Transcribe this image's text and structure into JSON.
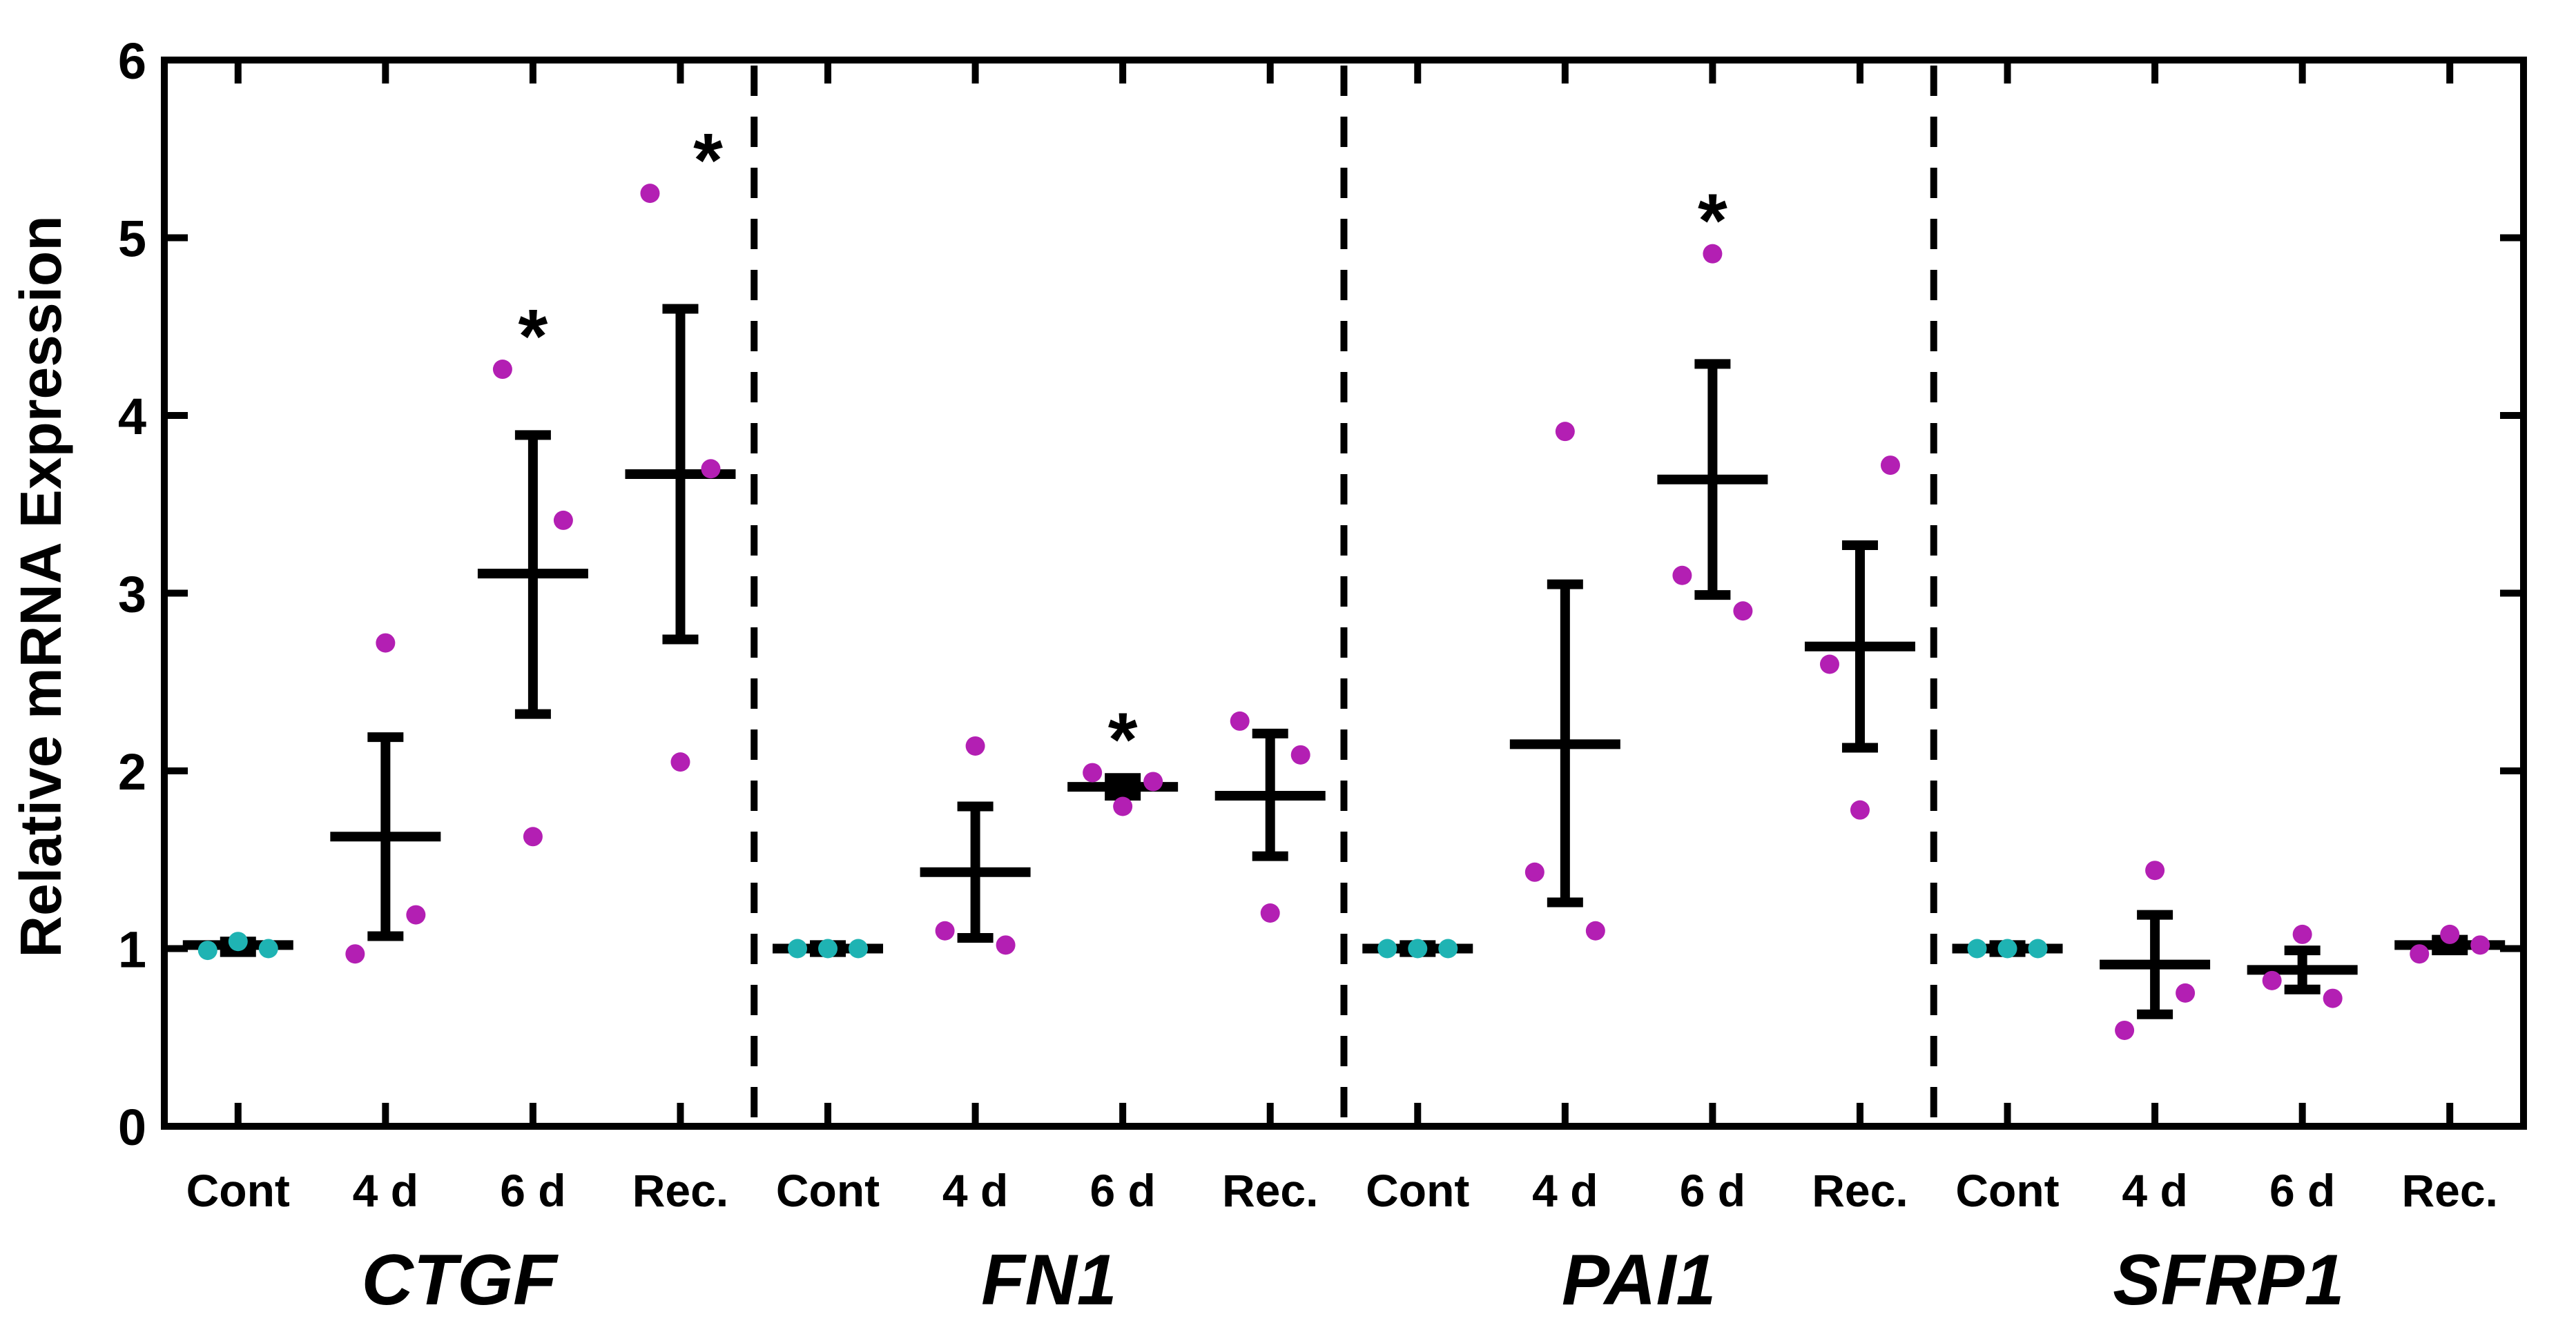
{
  "chart_data": {
    "type": "scatter",
    "title": "",
    "xlabel": "",
    "ylabel": "Relative mRNA Expression",
    "ylim": [
      0,
      6
    ],
    "yticks": [
      "0",
      "1",
      "2",
      "3",
      "4",
      "5",
      "6"
    ],
    "grid": false,
    "legend": "none",
    "colors": {
      "control_points": "#1fb3b3",
      "treated_points": "#b31fb3",
      "error_bars": "#000000",
      "axes": "#000000"
    },
    "groups": [
      {
        "gene": "CTGF",
        "categories": [
          {
            "label": "Cont",
            "control": true,
            "mean": 1.02,
            "sd_low": 0.98,
            "sd_high": 1.04,
            "points": [
              0.99,
              1.04,
              1.0
            ],
            "significance": ""
          },
          {
            "label": "4 d",
            "control": false,
            "mean": 1.63,
            "sd_low": 1.07,
            "sd_high": 2.19,
            "points": [
              0.97,
              2.72,
              1.19
            ],
            "significance": ""
          },
          {
            "label": "6 d",
            "control": false,
            "mean": 3.11,
            "sd_low": 2.32,
            "sd_high": 3.89,
            "points": [
              4.26,
              1.63,
              3.41
            ],
            "significance": "*"
          },
          {
            "label": "Rec.",
            "control": false,
            "mean": 3.67,
            "sd_low": 2.74,
            "sd_high": 4.6,
            "points": [
              5.25,
              2.05,
              3.7
            ],
            "significance": "*"
          }
        ]
      },
      {
        "gene": "FN1",
        "categories": [
          {
            "label": "Cont",
            "control": true,
            "mean": 1.0,
            "sd_low": 0.98,
            "sd_high": 1.02,
            "points": [
              1.0,
              1.0,
              1.0
            ],
            "significance": ""
          },
          {
            "label": "4 d",
            "control": false,
            "mean": 1.43,
            "sd_low": 1.06,
            "sd_high": 1.8,
            "points": [
              1.1,
              2.14,
              1.02
            ],
            "significance": ""
          },
          {
            "label": "6 d",
            "control": false,
            "mean": 1.91,
            "sd_low": 1.86,
            "sd_high": 1.96,
            "points": [
              1.99,
              1.8,
              1.94
            ],
            "significance": "*"
          },
          {
            "label": "Rec.",
            "control": false,
            "mean": 1.86,
            "sd_low": 1.52,
            "sd_high": 2.21,
            "points": [
              2.28,
              1.2,
              2.09
            ],
            "significance": ""
          }
        ]
      },
      {
        "gene": "PAI1",
        "categories": [
          {
            "label": "Cont",
            "control": true,
            "mean": 1.0,
            "sd_low": 0.98,
            "sd_high": 1.02,
            "points": [
              1.0,
              1.0,
              1.0
            ],
            "significance": ""
          },
          {
            "label": "4 d",
            "control": false,
            "mean": 2.15,
            "sd_low": 1.26,
            "sd_high": 3.05,
            "points": [
              1.43,
              3.91,
              1.1
            ],
            "significance": ""
          },
          {
            "label": "6 d",
            "control": false,
            "mean": 3.64,
            "sd_low": 2.99,
            "sd_high": 4.29,
            "points": [
              3.1,
              4.91,
              2.9
            ],
            "significance": "*"
          },
          {
            "label": "Rec.",
            "control": false,
            "mean": 2.7,
            "sd_low": 2.13,
            "sd_high": 3.27,
            "points": [
              2.6,
              1.78,
              3.72
            ],
            "significance": ""
          }
        ]
      },
      {
        "gene": "SFRP1",
        "categories": [
          {
            "label": "Cont",
            "control": true,
            "mean": 1.0,
            "sd_low": 0.98,
            "sd_high": 1.02,
            "points": [
              1.0,
              1.0,
              1.0
            ],
            "significance": ""
          },
          {
            "label": "4 d",
            "control": false,
            "mean": 0.91,
            "sd_low": 0.63,
            "sd_high": 1.19,
            "points": [
              0.54,
              1.44,
              0.75
            ],
            "significance": ""
          },
          {
            "label": "6 d",
            "control": false,
            "mean": 0.88,
            "sd_low": 0.77,
            "sd_high": 0.99,
            "points": [
              0.82,
              1.08,
              0.72
            ],
            "significance": ""
          },
          {
            "label": "Rec.",
            "control": false,
            "mean": 1.02,
            "sd_low": 0.99,
            "sd_high": 1.05,
            "points": [
              0.97,
              1.08,
              1.02
            ],
            "significance": ""
          }
        ]
      }
    ]
  }
}
